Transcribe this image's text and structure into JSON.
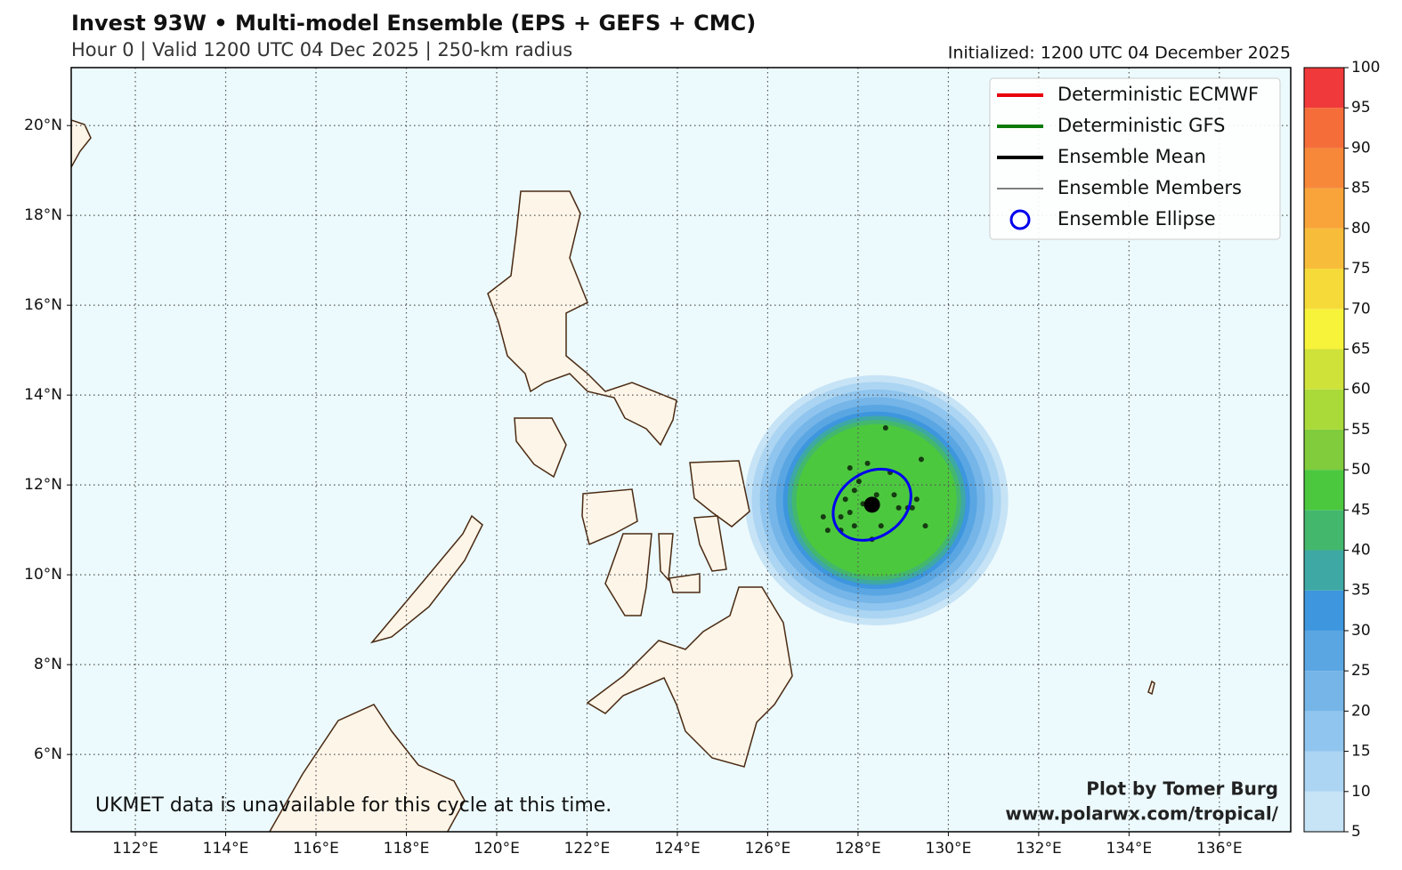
{
  "title": "Invest 93W • Multi-model Ensemble (EPS + GEFS + CMC)",
  "subtitle": "Hour 0 | Valid 1200 UTC 04 Dec 2025 | 250-km radius",
  "initialized": "Initialized: 1200 UTC 04 December 2025",
  "legend": [
    {
      "label": "Deterministic ECMWF",
      "symbol": "line",
      "color": "#e8000b",
      "width": 4
    },
    {
      "label": "Deterministic GFS",
      "symbol": "line",
      "color": "#0b7a0b",
      "width": 4
    },
    {
      "label": "Ensemble Mean",
      "symbol": "line",
      "color": "#000000",
      "width": 4
    },
    {
      "label": "Ensemble Members",
      "symbol": "line",
      "color": "#000000",
      "width": 1
    },
    {
      "label": "Ensemble Ellipse",
      "symbol": "circle",
      "color": "#0000ee",
      "width": 3
    }
  ],
  "map": {
    "xlim": [
      110.58,
      137.58
    ],
    "ylim": [
      4.28,
      21.29
    ],
    "grid": true,
    "xticks": [
      {
        "value": 112,
        "label": "112°E"
      },
      {
        "value": 114,
        "label": "114°E"
      },
      {
        "value": 116,
        "label": "116°E"
      },
      {
        "value": 118,
        "label": "118°E"
      },
      {
        "value": 120,
        "label": "120°E"
      },
      {
        "value": 122,
        "label": "122°E"
      },
      {
        "value": 124,
        "label": "124°E"
      },
      {
        "value": 126,
        "label": "126°E"
      },
      {
        "value": 128,
        "label": "128°E"
      },
      {
        "value": 130,
        "label": "130°E"
      },
      {
        "value": 132,
        "label": "132°E"
      },
      {
        "value": 134,
        "label": "134°E"
      },
      {
        "value": 136,
        "label": "136°E"
      }
    ],
    "yticks": [
      {
        "value": 6,
        "label": "6°N"
      },
      {
        "value": 8,
        "label": "8°N"
      },
      {
        "value": 10,
        "label": "10°N"
      },
      {
        "value": 12,
        "label": "12°N"
      },
      {
        "value": 14,
        "label": "14°N"
      },
      {
        "value": 16,
        "label": "16°N"
      },
      {
        "value": 18,
        "label": "18°N"
      },
      {
        "value": 20,
        "label": "20°N"
      }
    ]
  },
  "ensemble": {
    "mean": [
      128.31,
      11.56
    ],
    "members": [
      [
        128.61,
        13.27
      ],
      [
        129.4,
        12.57
      ],
      [
        128.21,
        12.48
      ],
      [
        127.82,
        12.38
      ],
      [
        128.71,
        12.28
      ],
      [
        128.02,
        12.08
      ],
      [
        127.92,
        11.88
      ],
      [
        128.8,
        11.78
      ],
      [
        127.72,
        11.68
      ],
      [
        128.41,
        11.78
      ],
      [
        128.11,
        11.58
      ],
      [
        128.9,
        11.49
      ],
      [
        129.3,
        11.68
      ],
      [
        127.23,
        11.29
      ],
      [
        127.62,
        11.29
      ],
      [
        127.82,
        11.39
      ],
      [
        129.1,
        11.49
      ],
      [
        127.92,
        11.09
      ],
      [
        128.51,
        11.09
      ],
      [
        127.33,
        10.99
      ],
      [
        129.49,
        11.09
      ],
      [
        128.31,
        10.79
      ],
      [
        129.2,
        11.49
      ],
      [
        127.62,
        10.99
      ]
    ]
  },
  "colorbar": {
    "levels": [
      5,
      10,
      15,
      20,
      25,
      30,
      35,
      40,
      45,
      50,
      55,
      60,
      65,
      70,
      75,
      80,
      85,
      90,
      95,
      100
    ],
    "colors": [
      "#c7e3f6",
      "#abd5f2",
      "#8fc5ee",
      "#75b5e8",
      "#5aa6e3",
      "#3d96de",
      "#3ea8a4",
      "#43b86d",
      "#4cc83e",
      "#80cc3d",
      "#a9da3a",
      "#cfe23a",
      "#f7f33a",
      "#f5da3a",
      "#f7bd3a",
      "#f8a43a",
      "#f7883a",
      "#f56e3a",
      "#f0393a"
    ]
  },
  "note": "UKMET data is unavailable for this cycle at this time.",
  "credit": [
    "Plot by Tomer Burg",
    "www.polarwx.com/tropical/"
  ]
}
